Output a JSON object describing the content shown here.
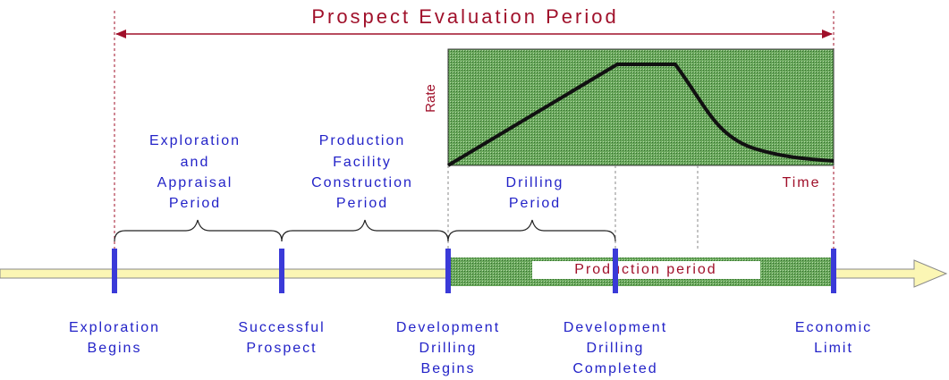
{
  "title": "Prospect Evaluation Period",
  "rate_chart": {
    "y_label": "Rate",
    "x_label": "Time"
  },
  "periods": [
    {
      "lines": [
        "Exploration",
        "and",
        "Appraisal",
        "Period"
      ]
    },
    {
      "lines": [
        "Production",
        "Facility",
        "Construction",
        "Period"
      ]
    },
    {
      "lines": [
        "Drilling",
        "Period"
      ]
    }
  ],
  "production_period": "Production period",
  "milestones": [
    {
      "lines": [
        "Exploration",
        "Begins"
      ]
    },
    {
      "lines": [
        "Successful",
        "Prospect"
      ]
    },
    {
      "lines": [
        "Development",
        "Drilling",
        "Begins"
      ]
    },
    {
      "lines": [
        "Development",
        "Drilling",
        "Completed"
      ]
    },
    {
      "lines": [
        "Economic",
        "Limit"
      ]
    }
  ]
}
